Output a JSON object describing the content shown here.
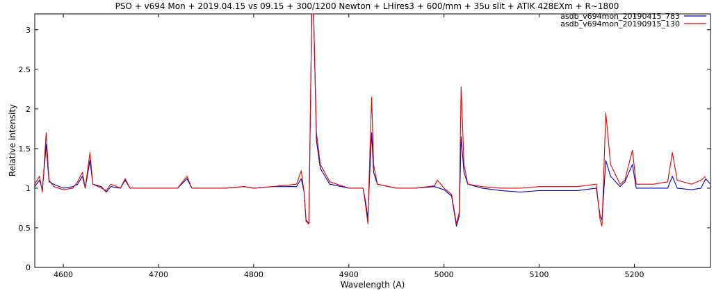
{
  "chart_data": {
    "type": "line",
    "title": "PSO + v694 Mon + 2019.04.15 vs 09.15 + 300/1200 Newton + LHires3 + 600/mm + 35u slit + ATIK 428EXm + R~1800",
    "xlabel": "Wavelength (A)",
    "ylabel": "Relative intensity",
    "xlim": [
      4570,
      5280
    ],
    "ylim": [
      0,
      3.2
    ],
    "xticks": [
      4600,
      4700,
      4800,
      4900,
      5000,
      5100,
      5200
    ],
    "yticks": [
      0,
      0.5,
      1,
      1.5,
      2,
      2.5,
      3
    ],
    "grid": false,
    "legend_position": "top-right",
    "series": [
      {
        "name": "asdb_v694mon_20190415_783",
        "color": "#0000b0",
        "points": [
          [
            4570,
            1.02
          ],
          [
            4575,
            1.1
          ],
          [
            4578,
            0.98
          ],
          [
            4582,
            1.55
          ],
          [
            4585,
            1.08
          ],
          [
            4590,
            1.05
          ],
          [
            4600,
            1.0
          ],
          [
            4610,
            1.02
          ],
          [
            4615,
            1.05
          ],
          [
            4620,
            1.15
          ],
          [
            4623,
            1.0
          ],
          [
            4628,
            1.35
          ],
          [
            4631,
            1.05
          ],
          [
            4640,
            1.02
          ],
          [
            4645,
            0.95
          ],
          [
            4650,
            1.02
          ],
          [
            4660,
            1.0
          ],
          [
            4665,
            1.1
          ],
          [
            4670,
            1.0
          ],
          [
            4680,
            1.0
          ],
          [
            4700,
            1.0
          ],
          [
            4720,
            1.0
          ],
          [
            4730,
            1.12
          ],
          [
            4735,
            1.0
          ],
          [
            4750,
            1.0
          ],
          [
            4770,
            1.0
          ],
          [
            4790,
            1.02
          ],
          [
            4800,
            1.0
          ],
          [
            4820,
            1.02
          ],
          [
            4845,
            1.02
          ],
          [
            4850,
            1.12
          ],
          [
            4853,
            0.95
          ],
          [
            4855,
            0.6
          ],
          [
            4858,
            0.55
          ],
          [
            4861,
            3.2
          ],
          [
            4863,
            3.2
          ],
          [
            4866,
            1.6
          ],
          [
            4870,
            1.25
          ],
          [
            4880,
            1.05
          ],
          [
            4900,
            1.0
          ],
          [
            4915,
            1.0
          ],
          [
            4918,
            0.8
          ],
          [
            4920,
            0.62
          ],
          [
            4922,
            1.2
          ],
          [
            4924,
            1.7
          ],
          [
            4926,
            1.2
          ],
          [
            4930,
            1.05
          ],
          [
            4950,
            1.0
          ],
          [
            4970,
            1.0
          ],
          [
            4990,
            1.02
          ],
          [
            5000,
            0.98
          ],
          [
            5008,
            0.9
          ],
          [
            5013,
            0.52
          ],
          [
            5016,
            0.65
          ],
          [
            5018,
            1.65
          ],
          [
            5021,
            1.2
          ],
          [
            5025,
            1.05
          ],
          [
            5040,
            1.0
          ],
          [
            5060,
            0.97
          ],
          [
            5080,
            0.95
          ],
          [
            5100,
            0.97
          ],
          [
            5120,
            0.97
          ],
          [
            5140,
            0.97
          ],
          [
            5160,
            1.0
          ],
          [
            5164,
            0.65
          ],
          [
            5166,
            0.6
          ],
          [
            5170,
            1.35
          ],
          [
            5175,
            1.15
          ],
          [
            5185,
            1.02
          ],
          [
            5190,
            1.08
          ],
          [
            5198,
            1.3
          ],
          [
            5202,
            1.0
          ],
          [
            5220,
            1.0
          ],
          [
            5235,
            1.0
          ],
          [
            5240,
            1.15
          ],
          [
            5245,
            1.0
          ],
          [
            5260,
            0.98
          ],
          [
            5270,
            1.0
          ],
          [
            5275,
            1.12
          ],
          [
            5280,
            1.05
          ]
        ]
      },
      {
        "name": "asdb_v694mon_20190915_130",
        "color": "#e00000",
        "points": [
          [
            4570,
            1.05
          ],
          [
            4575,
            1.15
          ],
          [
            4578,
            0.95
          ],
          [
            4582,
            1.7
          ],
          [
            4585,
            1.1
          ],
          [
            4590,
            1.02
          ],
          [
            4600,
            0.98
          ],
          [
            4610,
            1.0
          ],
          [
            4615,
            1.08
          ],
          [
            4620,
            1.2
          ],
          [
            4623,
            1.0
          ],
          [
            4628,
            1.45
          ],
          [
            4631,
            1.05
          ],
          [
            4640,
            1.0
          ],
          [
            4645,
            0.97
          ],
          [
            4650,
            1.05
          ],
          [
            4660,
            1.0
          ],
          [
            4665,
            1.12
          ],
          [
            4670,
            1.0
          ],
          [
            4680,
            1.0
          ],
          [
            4700,
            1.0
          ],
          [
            4720,
            1.0
          ],
          [
            4730,
            1.15
          ],
          [
            4735,
            1.0
          ],
          [
            4750,
            1.0
          ],
          [
            4770,
            1.0
          ],
          [
            4790,
            1.02
          ],
          [
            4800,
            1.0
          ],
          [
            4820,
            1.02
          ],
          [
            4845,
            1.05
          ],
          [
            4850,
            1.22
          ],
          [
            4853,
            0.95
          ],
          [
            4855,
            0.58
          ],
          [
            4858,
            0.55
          ],
          [
            4861,
            3.2
          ],
          [
            4863,
            3.2
          ],
          [
            4866,
            1.7
          ],
          [
            4870,
            1.3
          ],
          [
            4880,
            1.08
          ],
          [
            4900,
            1.0
          ],
          [
            4915,
            1.0
          ],
          [
            4918,
            0.75
          ],
          [
            4920,
            0.55
          ],
          [
            4922,
            1.4
          ],
          [
            4924,
            2.15
          ],
          [
            4926,
            1.3
          ],
          [
            4930,
            1.05
          ],
          [
            4950,
            1.0
          ],
          [
            4970,
            1.0
          ],
          [
            4990,
            1.03
          ],
          [
            4993,
            1.1
          ],
          [
            5000,
            1.0
          ],
          [
            5008,
            0.92
          ],
          [
            5013,
            0.55
          ],
          [
            5016,
            0.7
          ],
          [
            5018,
            2.28
          ],
          [
            5021,
            1.3
          ],
          [
            5025,
            1.05
          ],
          [
            5040,
            1.02
          ],
          [
            5060,
            1.0
          ],
          [
            5080,
            1.0
          ],
          [
            5100,
            1.02
          ],
          [
            5120,
            1.02
          ],
          [
            5140,
            1.02
          ],
          [
            5160,
            1.05
          ],
          [
            5164,
            0.6
          ],
          [
            5166,
            0.52
          ],
          [
            5170,
            1.95
          ],
          [
            5175,
            1.3
          ],
          [
            5185,
            1.05
          ],
          [
            5190,
            1.1
          ],
          [
            5198,
            1.48
          ],
          [
            5202,
            1.05
          ],
          [
            5220,
            1.05
          ],
          [
            5235,
            1.08
          ],
          [
            5240,
            1.45
          ],
          [
            5245,
            1.1
          ],
          [
            5260,
            1.05
          ],
          [
            5270,
            1.1
          ],
          [
            5275,
            1.15
          ]
        ]
      }
    ]
  }
}
